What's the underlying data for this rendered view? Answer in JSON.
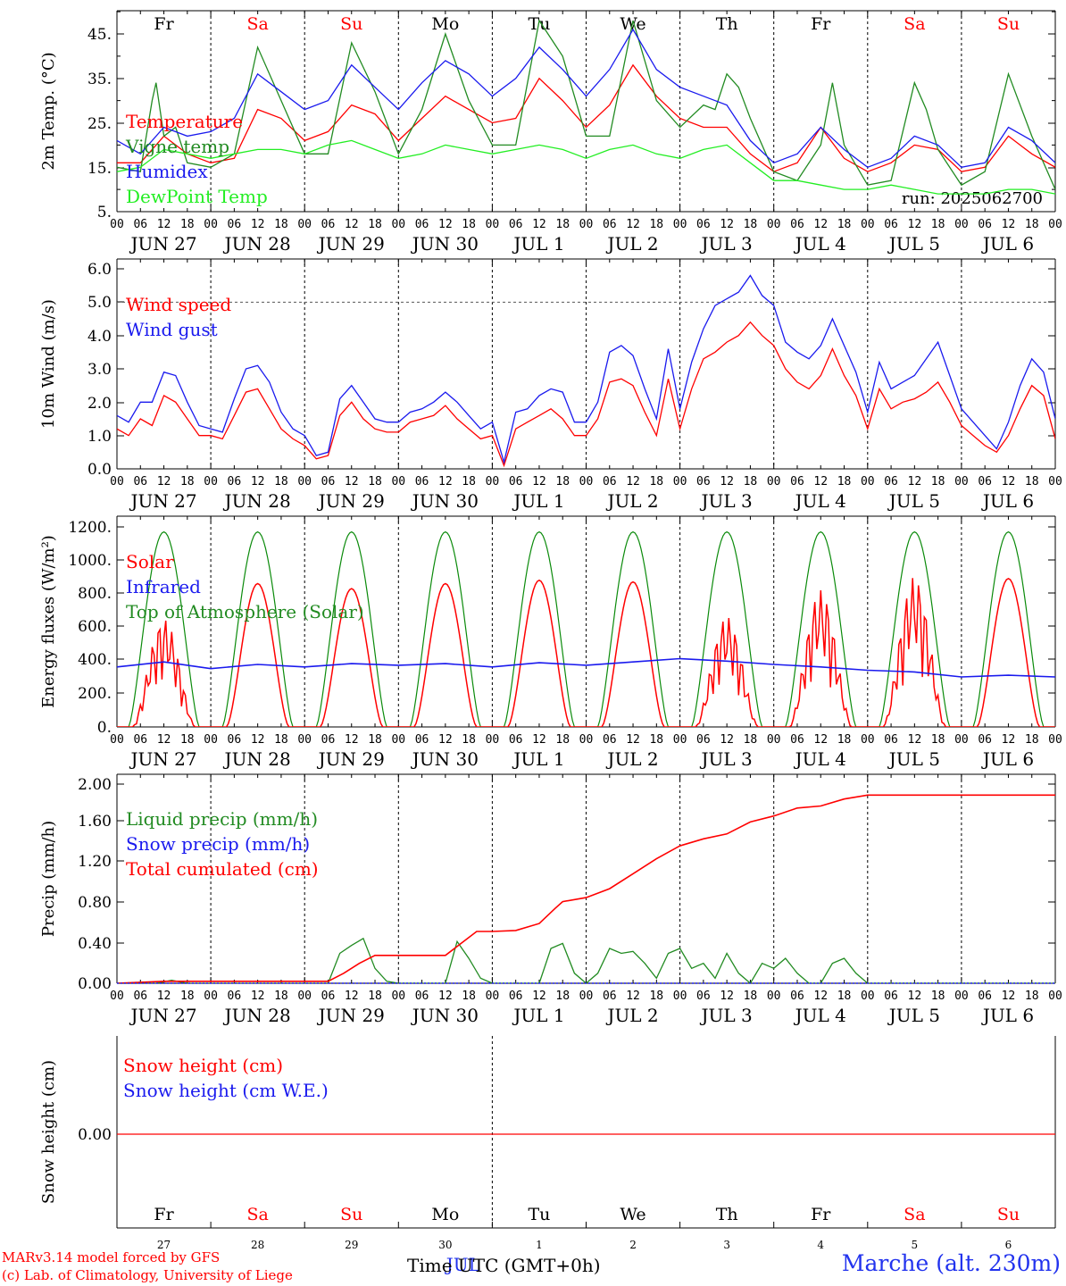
{
  "station": "Marche (alt. 230m)",
  "footer": {
    "line1": "MARv3.14 model forced by GFS",
    "line2": "(c) Lab. of Climatology, University of Liege"
  },
  "x_axis_title": "Time UTC (GMT+0h)",
  "run_label": "run: 2025062700",
  "days": [
    {
      "weekday": "Fr",
      "date": "JUN 27",
      "num": "27",
      "weekend": false
    },
    {
      "weekday": "Sa",
      "date": "JUN 28",
      "num": "28",
      "weekend": true
    },
    {
      "weekday": "Su",
      "date": "JUN 29",
      "num": "29",
      "weekend": true
    },
    {
      "weekday": "Mo",
      "date": "JUN 30",
      "num": "30",
      "weekend": false
    },
    {
      "weekday": "Tu",
      "date": "JUL 1",
      "num": "1",
      "weekend": false
    },
    {
      "weekday": "We",
      "date": "JUL 2",
      "num": "2",
      "weekend": false
    },
    {
      "weekday": "Th",
      "date": "JUL 3",
      "num": "3",
      "weekend": false
    },
    {
      "weekday": "Fr",
      "date": "JUL 4",
      "num": "4",
      "weekend": false
    },
    {
      "weekday": "Sa",
      "date": "JUL 5",
      "num": "5",
      "weekend": true
    },
    {
      "weekday": "Su",
      "date": "JUL 6",
      "num": "6",
      "weekend": true
    }
  ],
  "hour_ticks": [
    "00",
    "06",
    "12",
    "18"
  ],
  "last_hour_tick": "00",
  "bottom_month_label": "JUL",
  "colors": {
    "red": "#ff0000",
    "blue": "#1a1aee",
    "green": "#0a8a0a",
    "lightgreen": "#22ee22",
    "darkgreen": "#228b22",
    "weekend": "#ff0000",
    "weekday": "#000000"
  },
  "chart_data": [
    {
      "type": "line",
      "ylabel": "2m Temp. (°C)",
      "ylim": [
        5,
        50
      ],
      "yticks": [
        "5.",
        "15.",
        "25.",
        "35.",
        "45."
      ],
      "yticks_values": [
        5,
        15,
        25,
        35,
        45
      ],
      "legend": [
        "Temperature",
        "Vigne temp",
        "Humidex",
        "DewPoint Temp"
      ],
      "series": [
        {
          "name": "Temperature",
          "color": "#ff0000",
          "x": [
            0,
            6,
            12,
            18,
            24,
            30,
            36,
            42,
            48,
            54,
            60,
            66,
            72,
            78,
            84,
            90,
            96,
            102,
            108,
            114,
            120,
            126,
            132,
            138,
            144,
            150,
            156,
            162,
            168,
            174,
            180,
            186,
            192,
            198,
            204,
            210,
            216,
            222,
            228,
            234,
            240
          ],
          "values": [
            16,
            16,
            22,
            18,
            16,
            17,
            28,
            26,
            21,
            23,
            29,
            27,
            21,
            26,
            31,
            28,
            25,
            26,
            35,
            30,
            24,
            29,
            38,
            31,
            26,
            24,
            24,
            18,
            14,
            16,
            24,
            17,
            14,
            16,
            20,
            19,
            14,
            15,
            22,
            18,
            15
          ]
        },
        {
          "name": "Vigne temp",
          "color": "#228b22",
          "x": [
            0,
            6,
            9,
            10,
            12,
            15,
            18,
            24,
            30,
            36,
            42,
            48,
            54,
            60,
            66,
            72,
            78,
            84,
            90,
            96,
            102,
            108,
            114,
            120,
            126,
            132,
            138,
            144,
            150,
            153,
            156,
            159,
            162,
            168,
            174,
            180,
            183,
            186,
            192,
            198,
            204,
            207,
            210,
            216,
            222,
            228,
            234,
            240
          ],
          "values": [
            15,
            14,
            30,
            34,
            22,
            24,
            16,
            15,
            18,
            42,
            30,
            18,
            18,
            43,
            32,
            18,
            28,
            45,
            30,
            20,
            20,
            48,
            40,
            22,
            22,
            48,
            30,
            24,
            29,
            28,
            36,
            33,
            26,
            14,
            12,
            20,
            34,
            20,
            11,
            12,
            34,
            28,
            19,
            11,
            14,
            36,
            22,
            10
          ]
        },
        {
          "name": "Humidex",
          "color": "#1a1aee",
          "x": [
            0,
            6,
            12,
            18,
            24,
            30,
            36,
            42,
            48,
            54,
            60,
            66,
            72,
            78,
            84,
            90,
            96,
            102,
            108,
            114,
            120,
            126,
            132,
            138,
            144,
            150,
            156,
            162,
            168,
            174,
            180,
            186,
            192,
            198,
            204,
            210,
            216,
            222,
            228,
            234,
            240
          ],
          "values": [
            21,
            18,
            24,
            22,
            23,
            26,
            36,
            32,
            28,
            30,
            38,
            33,
            28,
            34,
            39,
            36,
            31,
            35,
            42,
            37,
            31,
            37,
            46,
            37,
            33,
            31,
            29,
            21,
            16,
            18,
            24,
            19,
            15,
            17,
            22,
            20,
            15,
            16,
            24,
            21,
            16
          ]
        },
        {
          "name": "DewPoint Temp",
          "color": "#22ee22",
          "x": [
            0,
            6,
            12,
            18,
            24,
            30,
            36,
            42,
            48,
            54,
            60,
            66,
            72,
            78,
            84,
            90,
            96,
            102,
            108,
            114,
            120,
            126,
            132,
            138,
            144,
            150,
            156,
            162,
            168,
            174,
            180,
            186,
            192,
            198,
            204,
            210,
            216,
            222,
            228,
            234,
            240
          ],
          "values": [
            14,
            15,
            19,
            18,
            17,
            18,
            19,
            19,
            18,
            20,
            21,
            19,
            17,
            18,
            20,
            19,
            18,
            19,
            20,
            19,
            17,
            19,
            20,
            18,
            17,
            19,
            20,
            16,
            12,
            12,
            11,
            10,
            10,
            11,
            10,
            9,
            9,
            9,
            10,
            10,
            9
          ]
        }
      ]
    },
    {
      "type": "line",
      "ylabel": "10m Wind (m/s)",
      "ylim": [
        0,
        6
      ],
      "yticks": [
        "0.0",
        "1.0",
        "2.0",
        "3.0",
        "4.0",
        "5.0",
        "6.0"
      ],
      "yticks_values": [
        0,
        1,
        2,
        3,
        4,
        5,
        6
      ],
      "dashed_line": 5,
      "legend": [
        "Wind speed",
        "Wind gust"
      ],
      "series": [
        {
          "name": "Wind speed",
          "color": "#ff0000",
          "x": [
            0,
            3,
            6,
            9,
            12,
            15,
            18,
            21,
            24,
            27,
            30,
            33,
            36,
            39,
            42,
            45,
            48,
            51,
            54,
            57,
            60,
            63,
            66,
            69,
            72,
            75,
            78,
            81,
            84,
            87,
            90,
            93,
            96,
            99,
            102,
            105,
            108,
            111,
            114,
            117,
            120,
            123,
            126,
            129,
            132,
            135,
            138,
            141,
            144,
            147,
            150,
            153,
            156,
            159,
            162,
            165,
            168,
            171,
            174,
            177,
            180,
            183,
            186,
            189,
            192,
            195,
            198,
            201,
            204,
            207,
            210,
            213,
            216,
            219,
            222,
            225,
            228,
            231,
            234,
            237,
            240
          ],
          "values": [
            1.2,
            1.0,
            1.5,
            1.3,
            2.2,
            2.0,
            1.5,
            1.0,
            1.0,
            0.9,
            1.6,
            2.3,
            2.4,
            1.8,
            1.2,
            0.9,
            0.7,
            0.3,
            0.4,
            1.6,
            2.0,
            1.5,
            1.2,
            1.1,
            1.1,
            1.4,
            1.5,
            1.6,
            1.9,
            1.5,
            1.2,
            0.9,
            1.0,
            0.1,
            1.2,
            1.4,
            1.6,
            1.8,
            1.5,
            1.0,
            1.0,
            1.5,
            2.6,
            2.7,
            2.5,
            1.7,
            1.0,
            2.7,
            1.2,
            2.4,
            3.3,
            3.5,
            3.8,
            4.0,
            4.4,
            4.0,
            3.7,
            3.0,
            2.6,
            2.4,
            2.8,
            3.6,
            2.8,
            2.2,
            1.2,
            2.4,
            1.8,
            2.0,
            2.1,
            2.3,
            2.6,
            2.0,
            1.3,
            1.0,
            0.7,
            0.5,
            1.0,
            1.8,
            2.5,
            2.2,
            0.9
          ]
        },
        {
          "name": "Wind gust",
          "color": "#1a1aee",
          "x": [
            0,
            3,
            6,
            9,
            12,
            15,
            18,
            21,
            24,
            27,
            30,
            33,
            36,
            39,
            42,
            45,
            48,
            51,
            54,
            57,
            60,
            63,
            66,
            69,
            72,
            75,
            78,
            81,
            84,
            87,
            90,
            93,
            96,
            99,
            102,
            105,
            108,
            111,
            114,
            117,
            120,
            123,
            126,
            129,
            132,
            135,
            138,
            141,
            144,
            147,
            150,
            153,
            156,
            159,
            162,
            165,
            168,
            171,
            174,
            177,
            180,
            183,
            186,
            189,
            192,
            195,
            198,
            201,
            204,
            207,
            210,
            213,
            216,
            219,
            222,
            225,
            228,
            231,
            234,
            237,
            240
          ],
          "values": [
            1.6,
            1.4,
            2.0,
            2.0,
            2.9,
            2.8,
            2.0,
            1.3,
            1.2,
            1.1,
            2.1,
            3.0,
            3.1,
            2.6,
            1.7,
            1.2,
            1.0,
            0.4,
            0.5,
            2.1,
            2.5,
            2.0,
            1.5,
            1.4,
            1.4,
            1.7,
            1.8,
            2.0,
            2.3,
            2.0,
            1.6,
            1.2,
            1.4,
            0.2,
            1.7,
            1.8,
            2.2,
            2.4,
            2.3,
            1.4,
            1.4,
            2.0,
            3.5,
            3.7,
            3.4,
            2.4,
            1.5,
            3.6,
            1.8,
            3.2,
            4.2,
            4.9,
            5.1,
            5.3,
            5.8,
            5.2,
            4.9,
            3.8,
            3.5,
            3.3,
            3.7,
            4.5,
            3.7,
            2.9,
            1.7,
            3.2,
            2.4,
            2.6,
            2.8,
            3.3,
            3.8,
            2.8,
            1.8,
            1.4,
            1.0,
            0.6,
            1.4,
            2.5,
            3.3,
            2.9,
            1.5
          ]
        }
      ]
    },
    {
      "type": "line",
      "ylabel": "Energy fluxes (W/m²)",
      "ylim": [
        0,
        1200
      ],
      "yticks": [
        "0.",
        "200.",
        "400.",
        "600.",
        "800.",
        "1000.",
        "1200."
      ],
      "yticks_values": [
        0,
        200,
        400,
        600,
        800,
        1000,
        1200
      ],
      "legend": [
        "Solar",
        "Infrared",
        "Top of Atmosphere (Solar)"
      ],
      "daily_solar_peak": [
        650,
        860,
        830,
        860,
        880,
        870,
        660,
        820,
        900,
        890
      ],
      "toa_peak": 1170,
      "series": [
        {
          "name": "Infrared",
          "color": "#1a1aee",
          "x": [
            0,
            12,
            24,
            36,
            48,
            60,
            72,
            84,
            96,
            108,
            120,
            132,
            144,
            156,
            168,
            180,
            192,
            204,
            216,
            228,
            240
          ],
          "values": [
            360,
            390,
            350,
            375,
            360,
            380,
            370,
            380,
            360,
            385,
            370,
            390,
            410,
            395,
            375,
            360,
            340,
            330,
            300,
            310,
            300
          ]
        }
      ]
    },
    {
      "type": "line",
      "ylabel": "Precip (mm/h)",
      "ylim": [
        0,
        2
      ],
      "yticks": [
        "0.00",
        "0.40",
        "0.80",
        "1.20",
        "1.60",
        "2.00"
      ],
      "yticks_values": [
        0,
        0.4,
        0.8,
        1.2,
        1.6,
        2.0
      ],
      "legend": [
        "Liquid precip (mm/h)",
        "Snow precip (mm/h)",
        "Total cumulated (cm)"
      ],
      "series": [
        {
          "name": "Liquid precip (mm/h)",
          "color": "#228b22",
          "x": [
            0,
            10,
            14,
            18,
            24,
            54,
            57,
            60,
            63,
            66,
            69,
            72,
            84,
            87,
            90,
            93,
            96,
            108,
            111,
            114,
            117,
            120,
            123,
            126,
            129,
            132,
            135,
            138,
            141,
            144,
            147,
            150,
            153,
            156,
            159,
            162,
            165,
            168,
            171,
            174,
            177,
            180,
            183,
            186,
            189,
            192,
            240
          ],
          "values": [
            0,
            0,
            0.03,
            0,
            0,
            0,
            0.3,
            0.38,
            0.45,
            0.15,
            0.02,
            0,
            0,
            0.42,
            0.25,
            0.05,
            0,
            0,
            0.35,
            0.4,
            0.1,
            0,
            0.1,
            0.35,
            0.3,
            0.32,
            0.2,
            0.05,
            0.3,
            0.35,
            0.15,
            0.2,
            0.05,
            0.3,
            0.1,
            0,
            0.2,
            0.15,
            0.25,
            0.1,
            0,
            0,
            0.2,
            0.25,
            0.1,
            0,
            0
          ]
        },
        {
          "name": "Total cumulated (cm)",
          "color": "#ff0000",
          "x": [
            0,
            12,
            24,
            48,
            54,
            58,
            62,
            66,
            72,
            84,
            88,
            92,
            96,
            102,
            108,
            112,
            114,
            120,
            126,
            132,
            138,
            144,
            150,
            156,
            162,
            168,
            174,
            180,
            186,
            192,
            240
          ],
          "values": [
            0,
            0.02,
            0.02,
            0.02,
            0.02,
            0.1,
            0.2,
            0.28,
            0.28,
            0.28,
            0.4,
            0.52,
            0.52,
            0.53,
            0.6,
            0.75,
            0.82,
            0.86,
            0.95,
            1.1,
            1.25,
            1.38,
            1.45,
            1.5,
            1.62,
            1.68,
            1.76,
            1.78,
            1.85,
            1.89,
            1.89
          ]
        }
      ]
    },
    {
      "type": "line",
      "ylabel": "Snow height (cm)",
      "ylim": [
        -1,
        1
      ],
      "yticks": [
        "0.00"
      ],
      "yticks_values": [
        0
      ],
      "legend": [
        "Snow height (cm)",
        "Snow height (cm W.E.)"
      ],
      "series": [
        {
          "name": "Snow height (cm)",
          "color": "#ff0000",
          "x": [
            0,
            240
          ],
          "values": [
            0,
            0
          ]
        }
      ]
    }
  ]
}
